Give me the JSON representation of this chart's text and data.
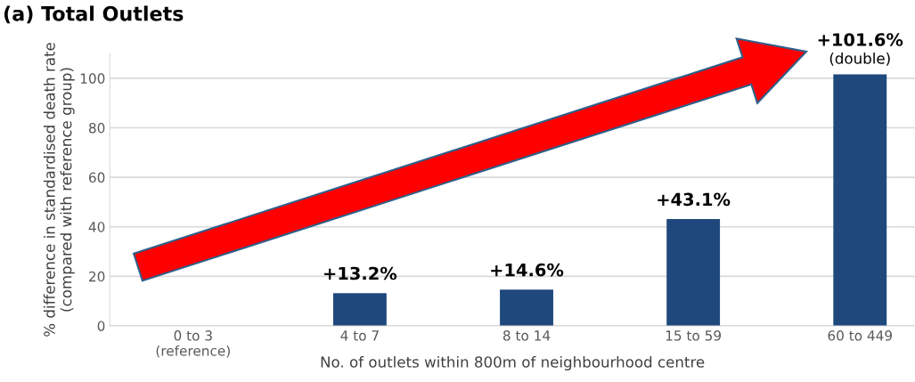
{
  "chart_data": {
    "type": "bar",
    "title": "(a) Total Outlets",
    "xlabel": "No. of outlets within 800m of neighbourhood centre",
    "ylabel": "% difference in standardised death rate\n(compared with reference group)",
    "categories": [
      "0 to 3\n(reference)",
      "4 to 7",
      "8 to 14",
      "15 to 59",
      "60 to 449"
    ],
    "values": [
      0,
      13.2,
      14.6,
      43.1,
      101.6
    ],
    "value_labels": [
      null,
      "+13.2%",
      "+14.6%",
      "+43.1%",
      "+101.6%\n(double)"
    ],
    "color": "#1f497d",
    "ylim": [
      0,
      110
    ],
    "yticks": [
      0,
      20,
      40,
      60,
      80,
      100
    ],
    "grid": "y"
  }
}
